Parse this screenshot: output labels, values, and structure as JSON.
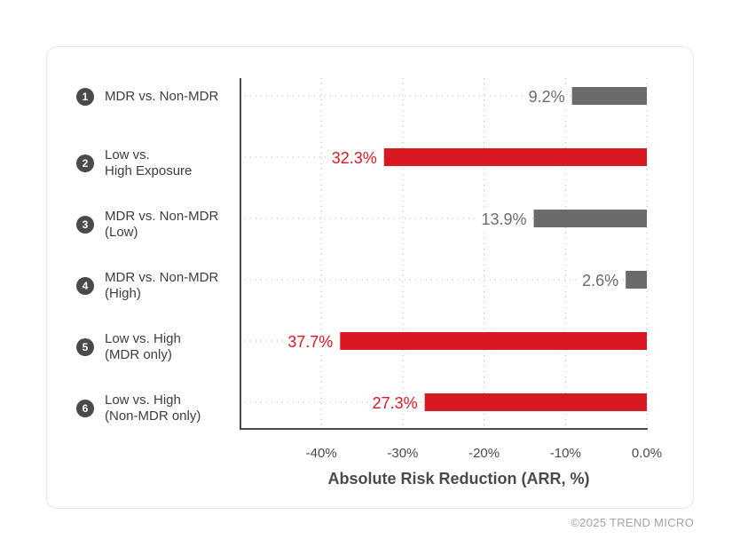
{
  "chart_data": {
    "type": "bar",
    "orientation": "horizontal",
    "title": "",
    "xlabel": "Absolute Risk Reduction (ARR, %)",
    "ylabel": "",
    "xlim": [
      -50,
      0
    ],
    "xticks": [
      -40,
      -30,
      -20,
      -10,
      0
    ],
    "xtick_labels": [
      "-40%",
      "-30%",
      "-20%",
      "-10%",
      "0.0%"
    ],
    "grid": true,
    "categories": [
      {
        "num": "1",
        "label": "MDR vs. Non-MDR"
      },
      {
        "num": "2",
        "label": "Low vs.\nHigh Exposure"
      },
      {
        "num": "3",
        "label": "MDR vs. Non-MDR\n(Low)"
      },
      {
        "num": "4",
        "label": "MDR vs. Non-MDR\n(High)"
      },
      {
        "num": "5",
        "label": "Low vs. High\n(MDR only)"
      },
      {
        "num": "6",
        "label": "Low vs. High\n(Non-MDR only)"
      }
    ],
    "values": [
      -9.2,
      -32.3,
      -13.9,
      -2.6,
      -37.7,
      -27.3
    ],
    "value_labels": [
      "9.2%",
      "32.3%",
      "13.9%",
      "2.6%",
      "37.7%",
      "27.3%"
    ],
    "bar_colors": [
      "#6b6b6e",
      "#d81921",
      "#6b6b6e",
      "#6b6b6e",
      "#d81921",
      "#d81921"
    ],
    "label_colors": [
      "#6b6b6e",
      "#d81921",
      "#6b6b6e",
      "#6b6b6e",
      "#d81921",
      "#d81921"
    ]
  },
  "footer": {
    "copyright": "©2025 TREND MICRO"
  }
}
